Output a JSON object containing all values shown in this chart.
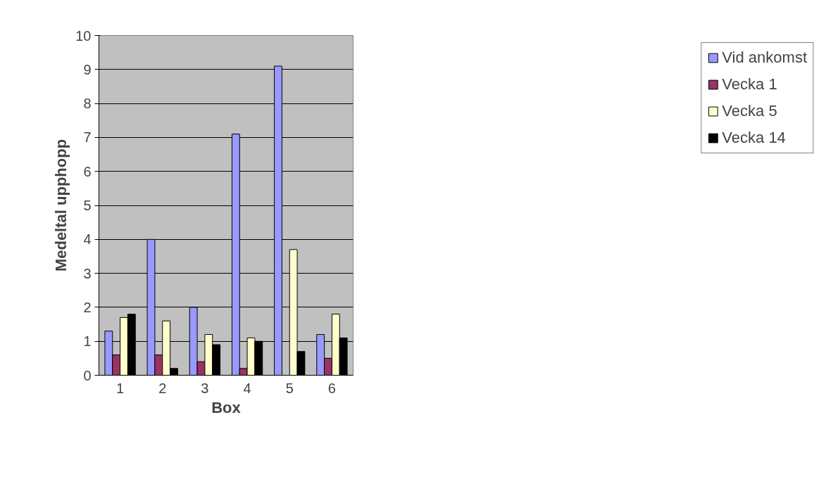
{
  "chart_data": {
    "type": "bar",
    "xlabel": "Box",
    "ylabel": "Medeltal upphopp",
    "categories": [
      "1",
      "2",
      "3",
      "4",
      "5",
      "6"
    ],
    "series": [
      {
        "name": "Vid ankomst",
        "color": "#9999ff",
        "values": [
          1.3,
          4.0,
          2.0,
          7.1,
          9.1,
          1.2
        ]
      },
      {
        "name": "Vecka 1",
        "color": "#993366",
        "values": [
          0.6,
          0.6,
          0.4,
          0.2,
          null,
          0.5
        ]
      },
      {
        "name": "Vecka 5",
        "color": "#ffffcc",
        "values": [
          1.7,
          1.6,
          1.2,
          1.1,
          3.7,
          1.8
        ]
      },
      {
        "name": "Vecka 14",
        "color": "#000000",
        "values": [
          1.8,
          0.2,
          0.9,
          1.0,
          0.7,
          1.1
        ]
      }
    ],
    "ylim": [
      0,
      10
    ],
    "yticks": [
      0,
      1,
      2,
      3,
      4,
      5,
      6,
      7,
      8,
      9,
      10
    ],
    "grid": "y",
    "legend": "right"
  }
}
